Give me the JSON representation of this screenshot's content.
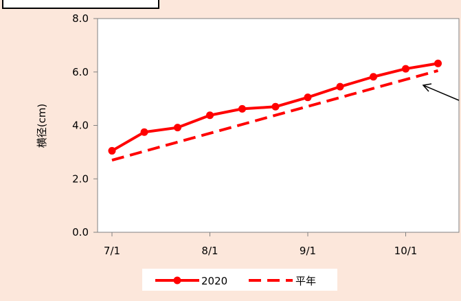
{
  "chart_data": {
    "type": "line",
    "title": "",
    "xlabel": "",
    "ylabel": "横径(cm)",
    "ylim": [
      0,
      8
    ],
    "yticks": [
      "0.0",
      "2.0",
      "4.0",
      "6.0",
      "8.0"
    ],
    "xticks": [
      {
        "label": "7/1",
        "x": 0
      },
      {
        "label": "8/1",
        "x": 1
      },
      {
        "label": "9/1",
        "x": 2
      },
      {
        "label": "10/1",
        "x": 3
      }
    ],
    "grid": false,
    "legend": "bottom",
    "series": [
      {
        "name": "2020",
        "color": "#ff0000",
        "style": "solid-markers",
        "x": [
          0,
          0.33,
          0.67,
          1.0,
          1.33,
          1.67,
          2.0,
          2.33,
          2.67,
          3.0,
          3.33
        ],
        "y": [
          3.05,
          3.75,
          3.92,
          4.38,
          4.62,
          4.7,
          5.05,
          5.45,
          5.82,
          6.12,
          6.32
        ]
      },
      {
        "name": "平年",
        "color": "#ff0000",
        "style": "dashed",
        "x": [
          0,
          3.33
        ],
        "y": [
          2.7,
          6.05
        ]
      }
    ]
  }
}
